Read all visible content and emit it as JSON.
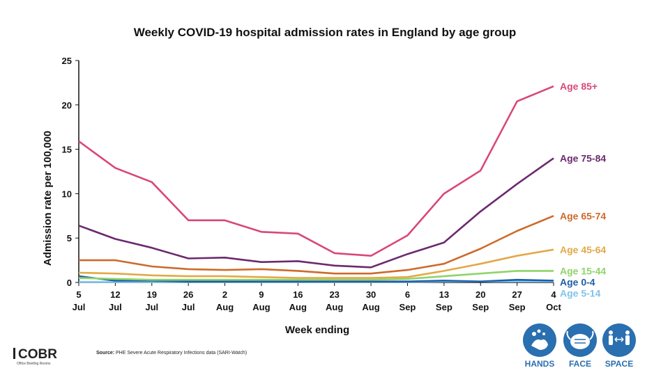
{
  "chart_data": {
    "type": "line",
    "title": "Weekly COVID-19 hospital admission rates in England by age group",
    "xlabel": "Week ending",
    "ylabel": "Admission rate per 100,000",
    "ylim": [
      0,
      25
    ],
    "yticks": [
      0,
      5,
      10,
      15,
      20,
      25
    ],
    "categories": [
      {
        "day": "5",
        "month": "Jul"
      },
      {
        "day": "12",
        "month": "Jul"
      },
      {
        "day": "19",
        "month": "Jul"
      },
      {
        "day": "26",
        "month": "Jul"
      },
      {
        "day": "2",
        "month": "Aug"
      },
      {
        "day": "9",
        "month": "Aug"
      },
      {
        "day": "16",
        "month": "Aug"
      },
      {
        "day": "23",
        "month": "Aug"
      },
      {
        "day": "30",
        "month": "Aug"
      },
      {
        "day": "6",
        "month": "Sep"
      },
      {
        "day": "13",
        "month": "Sep"
      },
      {
        "day": "20",
        "month": "Sep"
      },
      {
        "day": "27",
        "month": "Sep"
      },
      {
        "day": "4",
        "month": "Oct"
      }
    ],
    "grid": false,
    "legend": "direct labels at right end of lines",
    "series": [
      {
        "name": "Age 85+",
        "color": "#d9477a",
        "values": [
          15.9,
          12.9,
          11.3,
          7.0,
          7.0,
          5.7,
          5.5,
          3.3,
          3.0,
          5.3,
          10.0,
          12.6,
          20.4,
          22.1
        ]
      },
      {
        "name": "Age 75-84",
        "color": "#6b2a6e",
        "values": [
          6.4,
          4.9,
          3.9,
          2.7,
          2.8,
          2.3,
          2.4,
          1.9,
          1.7,
          3.2,
          4.5,
          8.0,
          11.1,
          14.0
        ]
      },
      {
        "name": "Age 65-74",
        "color": "#cd6a2b",
        "values": [
          2.5,
          2.5,
          1.8,
          1.5,
          1.4,
          1.5,
          1.3,
          1.0,
          1.0,
          1.4,
          2.1,
          3.8,
          5.8,
          7.5
        ]
      },
      {
        "name": "Age 45-64",
        "color": "#e3a847",
        "values": [
          1.1,
          1.0,
          0.8,
          0.7,
          0.7,
          0.6,
          0.5,
          0.5,
          0.5,
          0.6,
          1.3,
          2.1,
          3.0,
          3.7
        ]
      },
      {
        "name": "Age 15-44",
        "color": "#8fd46a",
        "values": [
          0.5,
          0.4,
          0.3,
          0.3,
          0.3,
          0.3,
          0.3,
          0.3,
          0.3,
          0.4,
          0.7,
          1.0,
          1.3,
          1.3
        ]
      },
      {
        "name": "Age 0-4",
        "color": "#1f5ea8",
        "values": [
          0.7,
          0.2,
          0.2,
          0.1,
          0.1,
          0.1,
          0.1,
          0.1,
          0.1,
          0.1,
          0.2,
          0.1,
          0.3,
          0.2
        ]
      },
      {
        "name": "Age 5-14",
        "color": "#7fc4ea",
        "values": [
          0.05,
          0.05,
          0.05,
          0.05,
          0.05,
          0.05,
          0.05,
          0.05,
          0.05,
          0.05,
          0.1,
          0.1,
          0.1,
          0.1
        ]
      }
    ]
  },
  "footer": {
    "source_prefix": "Source:",
    "source_text": " PHE Severe Acute Respiratory Infections data (SARI-Watch)",
    "logo_text": "COBR",
    "logo_subtext": "Office Briefing Rooms",
    "badges": [
      {
        "label": "HANDS",
        "icon": "hands-washing-icon"
      },
      {
        "label": "FACE",
        "icon": "face-mask-icon"
      },
      {
        "label": "SPACE",
        "icon": "social-distance-icon"
      }
    ],
    "badge_color": "#2a6fb0"
  }
}
